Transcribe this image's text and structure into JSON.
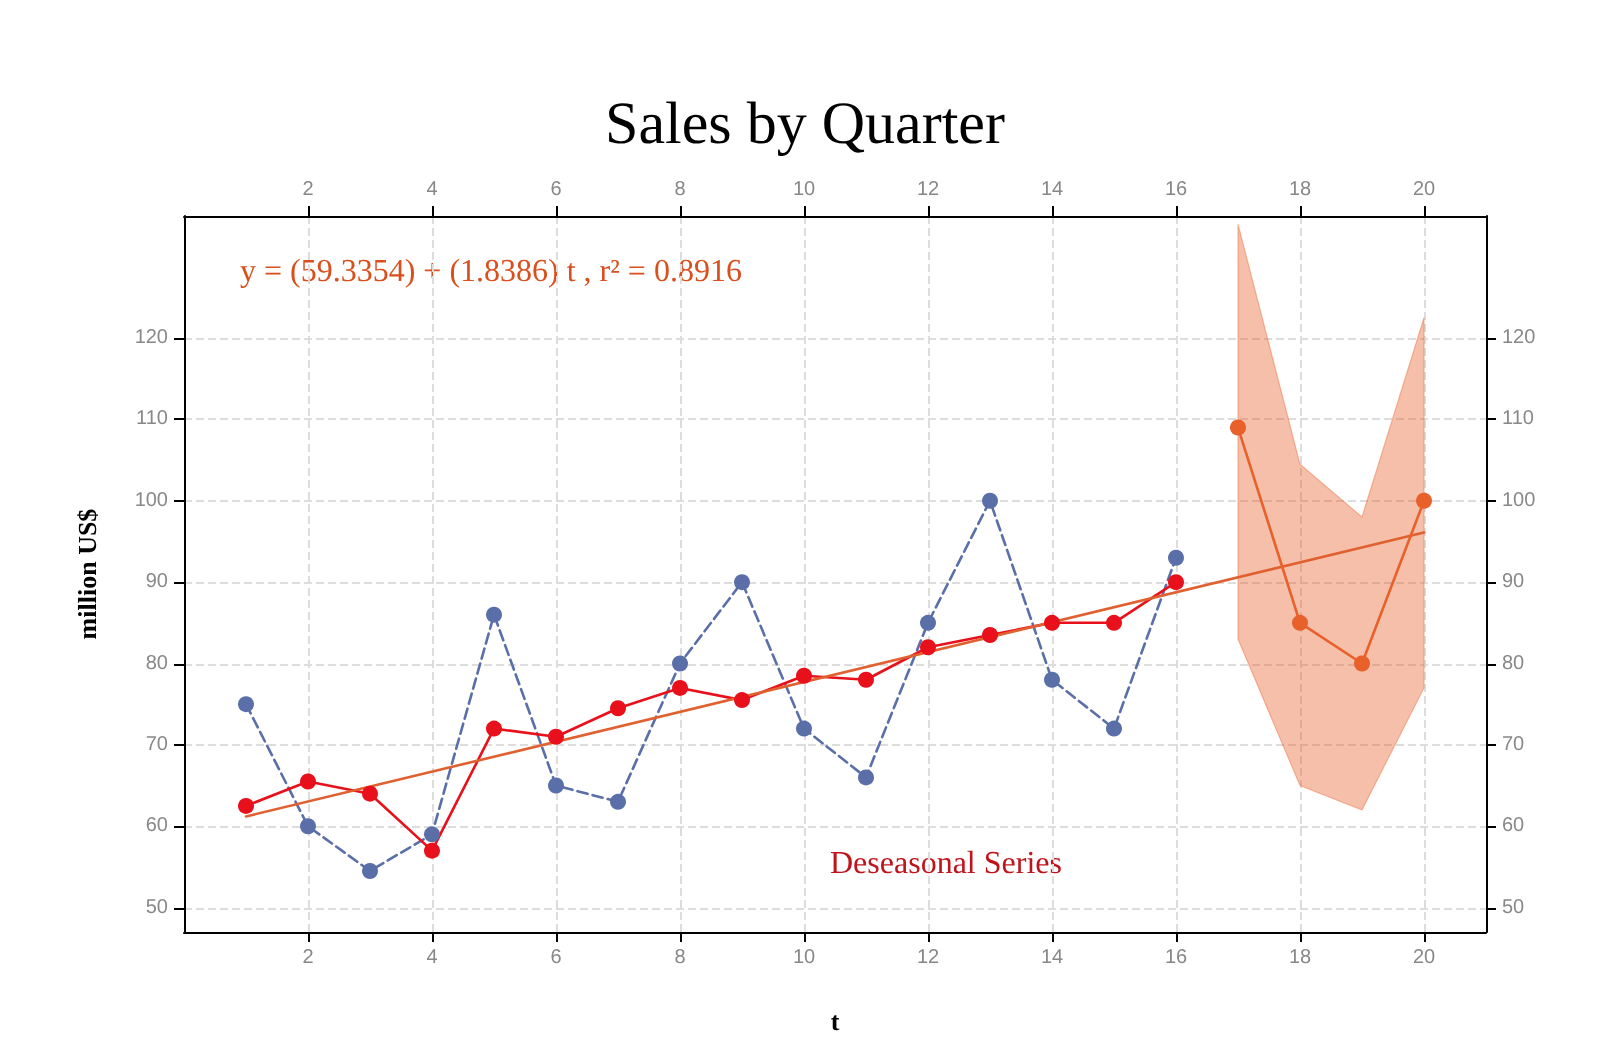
{
  "chart_data": {
    "type": "line",
    "title": "Sales by Quarter",
    "xlabel": "t",
    "ylabel": "million US$",
    "xlim": [
      0,
      21
    ],
    "xticks": [
      2,
      4,
      6,
      8,
      10,
      12,
      14,
      16,
      18,
      20
    ],
    "x2lim": [
      0,
      21
    ],
    "x2ticks": [
      2,
      4,
      6,
      8,
      10,
      12,
      14,
      16,
      18,
      20
    ],
    "ylim": [
      47,
      135
    ],
    "yticks": [
      50,
      60,
      70,
      80,
      90,
      100,
      110,
      120
    ],
    "y2lim": [
      47,
      135
    ],
    "y2ticks": [
      50,
      60,
      70,
      80,
      90,
      100,
      110,
      120
    ],
    "grid": true,
    "marker": "circle",
    "annotations": [
      "y = (59.3354) + (1.8386) t , r² = 0.8916",
      "Deseasonal Series"
    ],
    "series": [
      {
        "color": "#5a6fa8",
        "x": [
          1,
          2,
          3,
          4,
          5,
          6,
          7,
          8,
          9,
          10,
          11,
          12,
          13,
          14,
          15,
          16
        ],
        "values": [
          75,
          60,
          54.5,
          59,
          86,
          65,
          63,
          80,
          90,
          72,
          66,
          85,
          100,
          78,
          72,
          93
        ],
        "line_style": "dashed"
      },
      {
        "color": "#e8101a",
        "x": [
          1,
          2,
          3,
          4,
          5,
          6,
          7,
          8,
          9,
          10,
          11,
          12,
          13,
          14,
          15,
          16
        ],
        "values": [
          62.5,
          65.5,
          64,
          57,
          72,
          71,
          74.5,
          77,
          75.5,
          78.5,
          78,
          82,
          83.5,
          85,
          85,
          90
        ],
        "line_style": "solid"
      },
      {
        "color": "#e06030",
        "x": [
          1,
          20
        ],
        "values": [
          61.2,
          96.1
        ],
        "line_style": "solid",
        "marker": "none"
      },
      {
        "color": "#e8602a",
        "x": [
          17,
          18,
          19,
          20
        ],
        "values": [
          109,
          85,
          80,
          100
        ],
        "lower": [
          83,
          65,
          62,
          77
        ],
        "upper": [
          134,
          104.5,
          98,
          122.5
        ],
        "line_style": "solid"
      }
    ]
  }
}
